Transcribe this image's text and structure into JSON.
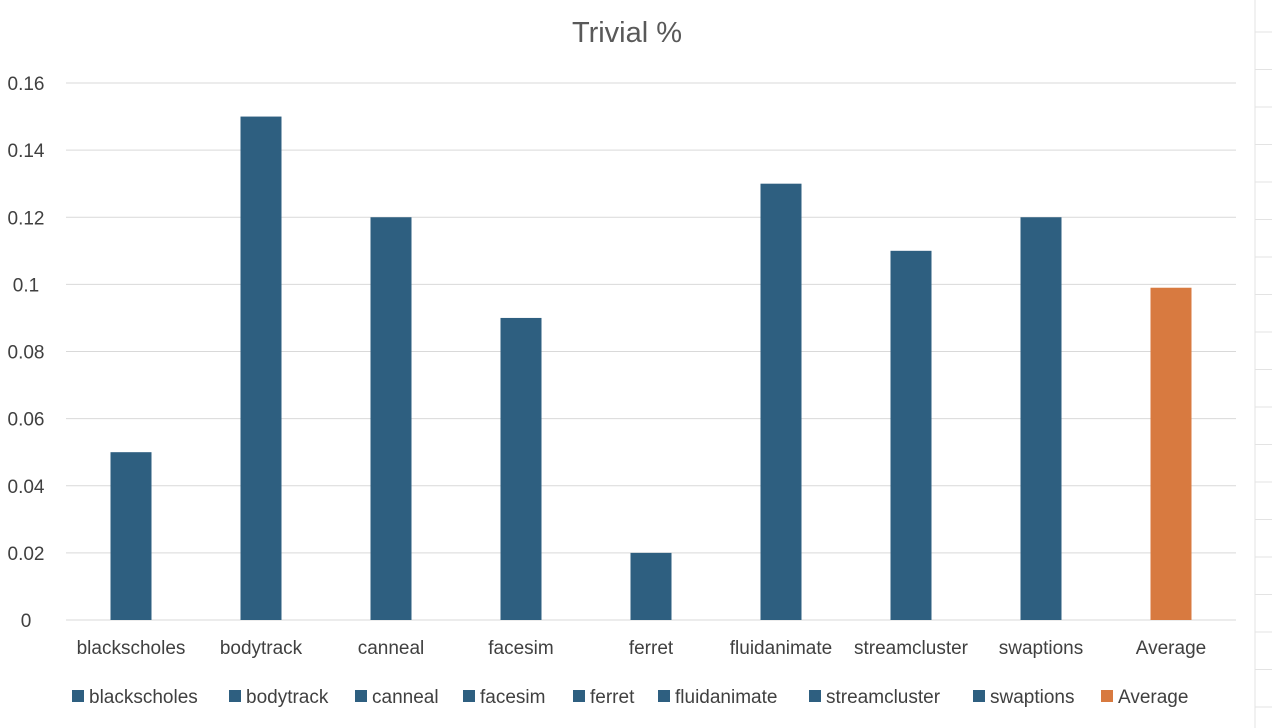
{
  "chart_data": {
    "type": "bar",
    "title": "Trivial %",
    "xlabel": "",
    "ylabel": "",
    "categories": [
      "blackscholes",
      "bodytrack",
      "canneal",
      "facesim",
      "ferret",
      "fluidanimate",
      "streamcluster",
      "swaptions",
      "Average"
    ],
    "values": [
      0.05,
      0.15,
      0.12,
      0.09,
      0.02,
      0.13,
      0.11,
      0.12,
      0.099
    ],
    "ylim": [
      0,
      0.16
    ],
    "yticks": [
      0,
      0.02,
      0.04,
      0.06,
      0.08,
      0.1,
      0.12,
      0.14,
      0.16
    ],
    "ytick_labels": [
      "0",
      "0.02",
      "0.04",
      "0.06",
      "0.08",
      "0.1",
      "0.12",
      "0.14",
      "0.16"
    ],
    "grid": true,
    "legend_position": "bottom",
    "legend": [
      "blackscholes",
      "bodytrack",
      "canneal",
      "facesim",
      "ferret",
      "fluidanimate",
      "streamcluster",
      "swaptions",
      "Average"
    ],
    "colors": {
      "bar": "#2e5f80",
      "average": "#d87a40"
    }
  }
}
